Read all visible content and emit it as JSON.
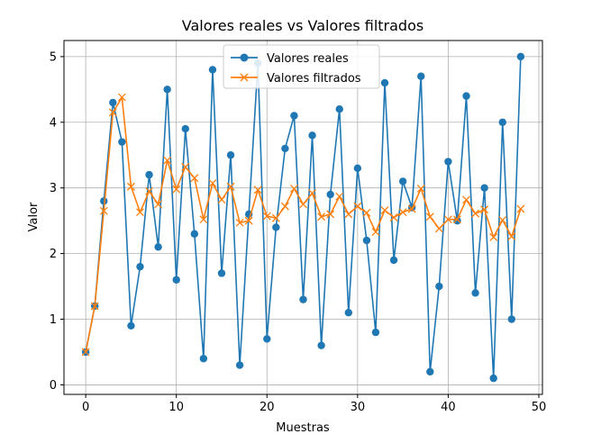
{
  "chart_data": {
    "type": "line",
    "title": "Valores reales vs Valores filtrados",
    "xlabel": "Muestras",
    "ylabel": "Valor",
    "xlim": [
      -2.4,
      50.4
    ],
    "ylim": [
      -0.145,
      5.245
    ],
    "xticks": [
      0,
      10,
      20,
      30,
      40,
      50
    ],
    "yticks": [
      0,
      1,
      2,
      3,
      4,
      5
    ],
    "grid": true,
    "legend_position": "top-center",
    "x": [
      0,
      1,
      2,
      3,
      4,
      5,
      6,
      7,
      8,
      9,
      10,
      11,
      12,
      13,
      14,
      15,
      16,
      17,
      18,
      19,
      20,
      21,
      22,
      23,
      24,
      25,
      26,
      27,
      28,
      29,
      30,
      31,
      32,
      33,
      34,
      35,
      36,
      37,
      38,
      39,
      40,
      41,
      42,
      43,
      44,
      45,
      46,
      47,
      48
    ],
    "series": [
      {
        "name": "Valores reales",
        "color": "#1f77b4",
        "marker": "circle",
        "values": [
          0.5,
          1.2,
          2.8,
          4.3,
          3.7,
          0.9,
          1.8,
          3.2,
          2.1,
          4.5,
          1.6,
          3.9,
          2.3,
          0.4,
          4.8,
          1.7,
          3.5,
          0.3,
          2.6,
          4.9,
          0.7,
          2.4,
          3.6,
          4.1,
          1.3,
          3.8,
          0.6,
          2.9,
          4.2,
          1.1,
          3.3,
          2.2,
          0.8,
          4.6,
          1.9,
          3.1,
          2.7,
          4.7,
          0.2,
          1.5,
          3.4,
          2.5,
          4.4,
          1.4,
          3.0,
          0.1,
          4.0,
          1.0,
          5.0
        ]
      },
      {
        "name": "Valores filtrados",
        "color": "#ff7f0e",
        "marker": "x",
        "values": [
          0.5,
          1.2,
          2.65,
          4.15,
          4.38,
          3.02,
          2.63,
          2.95,
          2.75,
          3.42,
          2.98,
          3.32,
          3.15,
          2.52,
          3.07,
          2.82,
          3.02,
          2.47,
          2.5,
          2.97,
          2.57,
          2.54,
          2.72,
          2.99,
          2.75,
          2.92,
          2.56,
          2.6,
          2.87,
          2.6,
          2.72,
          2.62,
          2.33,
          2.66,
          2.55,
          2.63,
          2.68,
          2.99,
          2.56,
          2.38,
          2.52,
          2.52,
          2.82,
          2.61,
          2.67,
          2.25,
          2.51,
          2.26,
          2.68
        ]
      }
    ]
  }
}
